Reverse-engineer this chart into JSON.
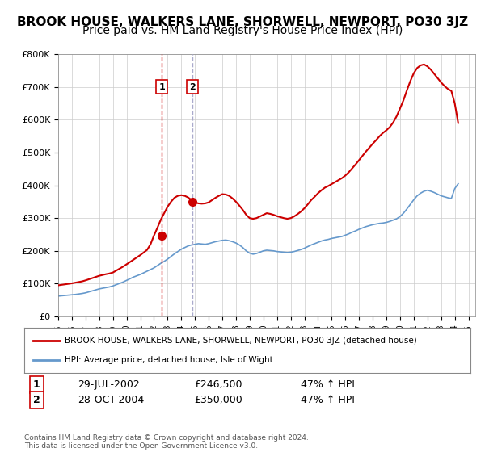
{
  "title": "BROOK HOUSE, WALKERS LANE, SHORWELL, NEWPORT, PO30 3JZ",
  "subtitle": "Price paid vs. HM Land Registry's House Price Index (HPI)",
  "title_fontsize": 11,
  "subtitle_fontsize": 10,
  "ylabel_ticks": [
    "£0",
    "£100K",
    "£200K",
    "£300K",
    "£400K",
    "£500K",
    "£600K",
    "£700K",
    "£800K"
  ],
  "ylim": [
    0,
    800000
  ],
  "xlim_start": 1995.0,
  "xlim_end": 2025.5,
  "sale1": {
    "date": "29-JUL-2002",
    "price": 246500,
    "label": "1",
    "x": 2002.57,
    "hpi_pct": "47% ↑ HPI"
  },
  "sale2": {
    "date": "28-OCT-2004",
    "price": 350000,
    "label": "2",
    "x": 2004.82,
    "hpi_pct": "47% ↑ HPI"
  },
  "legend_property": "BROOK HOUSE, WALKERS LANE, SHORWELL, NEWPORT, PO30 3JZ (detached house)",
  "legend_hpi": "HPI: Average price, detached house, Isle of Wight",
  "footer": "Contains HM Land Registry data © Crown copyright and database right 2024.\nThis data is licensed under the Open Government Licence v3.0.",
  "property_line_color": "#cc0000",
  "hpi_line_color": "#6699cc",
  "grid_color": "#cccccc",
  "background_color": "#ffffff",
  "sale_marker_color": "#cc0000",
  "sale_vline_color_1": "#cc0000",
  "sale_vline_color_2": "#aaaacc",
  "hpi_years": [
    1995,
    1995.25,
    1995.5,
    1995.75,
    1996,
    1996.25,
    1996.5,
    1996.75,
    1997,
    1997.25,
    1997.5,
    1997.75,
    1998,
    1998.25,
    1998.5,
    1998.75,
    1999,
    1999.25,
    1999.5,
    1999.75,
    2000,
    2000.25,
    2000.5,
    2000.75,
    2001,
    2001.25,
    2001.5,
    2001.75,
    2002,
    2002.25,
    2002.5,
    2002.75,
    2003,
    2003.25,
    2003.5,
    2003.75,
    2004,
    2004.25,
    2004.5,
    2004.75,
    2005,
    2005.25,
    2005.5,
    2005.75,
    2006,
    2006.25,
    2006.5,
    2006.75,
    2007,
    2007.25,
    2007.5,
    2007.75,
    2008,
    2008.25,
    2008.5,
    2008.75,
    2009,
    2009.25,
    2009.5,
    2009.75,
    2010,
    2010.25,
    2010.5,
    2010.75,
    2011,
    2011.25,
    2011.5,
    2011.75,
    2012,
    2012.25,
    2012.5,
    2012.75,
    2013,
    2013.25,
    2013.5,
    2013.75,
    2014,
    2014.25,
    2014.5,
    2014.75,
    2015,
    2015.25,
    2015.5,
    2015.75,
    2016,
    2016.25,
    2016.5,
    2016.75,
    2017,
    2017.25,
    2017.5,
    2017.75,
    2018,
    2018.25,
    2018.5,
    2018.75,
    2019,
    2019.25,
    2019.5,
    2019.75,
    2020,
    2020.25,
    2020.5,
    2020.75,
    2021,
    2021.25,
    2021.5,
    2021.75,
    2022,
    2022.25,
    2022.5,
    2022.75,
    2023,
    2023.25,
    2023.5,
    2023.75,
    2024,
    2024.25
  ],
  "hpi_values": [
    62000,
    63000,
    64000,
    65000,
    66000,
    67000,
    68500,
    70000,
    72000,
    75000,
    78000,
    81000,
    84000,
    86000,
    88000,
    90000,
    93000,
    97000,
    101000,
    105000,
    110000,
    115000,
    120000,
    124000,
    128000,
    133000,
    138000,
    143000,
    148000,
    155000,
    162000,
    168000,
    175000,
    183000,
    191000,
    198000,
    205000,
    210000,
    215000,
    218000,
    220000,
    222000,
    221000,
    220000,
    222000,
    225000,
    228000,
    230000,
    232000,
    233000,
    231000,
    228000,
    224000,
    218000,
    210000,
    200000,
    193000,
    190000,
    192000,
    196000,
    200000,
    202000,
    201000,
    200000,
    198000,
    197000,
    196000,
    195000,
    196000,
    198000,
    201000,
    204000,
    208000,
    213000,
    218000,
    222000,
    226000,
    230000,
    233000,
    235000,
    238000,
    240000,
    242000,
    244000,
    248000,
    252000,
    257000,
    261000,
    266000,
    270000,
    274000,
    277000,
    280000,
    282000,
    284000,
    285000,
    287000,
    290000,
    294000,
    298000,
    305000,
    315000,
    328000,
    342000,
    356000,
    368000,
    376000,
    382000,
    385000,
    382000,
    378000,
    373000,
    368000,
    365000,
    362000,
    360000,
    390000,
    405000
  ],
  "property_years": [
    1995,
    1995.25,
    1995.5,
    1995.75,
    1996,
    1996.25,
    1996.5,
    1996.75,
    1997,
    1997.25,
    1997.5,
    1997.75,
    1998,
    1998.25,
    1998.5,
    1998.75,
    1999,
    1999.25,
    1999.5,
    1999.75,
    2000,
    2000.25,
    2000.5,
    2000.75,
    2001,
    2001.25,
    2001.5,
    2001.75,
    2002,
    2002.25,
    2002.5,
    2002.75,
    2003,
    2003.25,
    2003.5,
    2003.75,
    2004,
    2004.25,
    2004.5,
    2004.75,
    2005,
    2005.25,
    2005.5,
    2005.75,
    2006,
    2006.25,
    2006.5,
    2006.75,
    2007,
    2007.25,
    2007.5,
    2007.75,
    2008,
    2008.25,
    2008.5,
    2008.75,
    2009,
    2009.25,
    2009.5,
    2009.75,
    2010,
    2010.25,
    2010.5,
    2010.75,
    2011,
    2011.25,
    2011.5,
    2011.75,
    2012,
    2012.25,
    2012.5,
    2012.75,
    2013,
    2013.25,
    2013.5,
    2013.75,
    2014,
    2014.25,
    2014.5,
    2014.75,
    2015,
    2015.25,
    2015.5,
    2015.75,
    2016,
    2016.25,
    2016.5,
    2016.75,
    2017,
    2017.25,
    2017.5,
    2017.75,
    2018,
    2018.25,
    2018.5,
    2018.75,
    2019,
    2019.25,
    2019.5,
    2019.75,
    2020,
    2020.25,
    2020.5,
    2020.75,
    2021,
    2021.25,
    2021.5,
    2021.75,
    2022,
    2022.25,
    2022.5,
    2022.75,
    2023,
    2023.25,
    2023.5,
    2023.75,
    2024,
    2024.25
  ],
  "property_values": [
    95000,
    96500,
    98000,
    99500,
    101000,
    103000,
    105000,
    107000,
    110000,
    113500,
    117000,
    120500,
    124000,
    126500,
    129000,
    131000,
    134000,
    140000,
    146000,
    152000,
    159000,
    166000,
    173000,
    180000,
    187000,
    195000,
    203000,
    220000,
    246500,
    270000,
    295000,
    315000,
    335000,
    350000,
    362000,
    368000,
    370000,
    368000,
    363000,
    355000,
    348000,
    345000,
    344000,
    345000,
    348000,
    355000,
    362000,
    368000,
    373000,
    372000,
    368000,
    360000,
    350000,
    338000,
    325000,
    310000,
    300000,
    298000,
    300000,
    305000,
    310000,
    315000,
    313000,
    310000,
    306000,
    303000,
    300000,
    298000,
    300000,
    305000,
    312000,
    320000,
    330000,
    342000,
    355000,
    365000,
    376000,
    385000,
    393000,
    398000,
    404000,
    410000,
    416000,
    422000,
    430000,
    440000,
    452000,
    464000,
    477000,
    490000,
    503000,
    515000,
    527000,
    538000,
    550000,
    560000,
    568000,
    578000,
    592000,
    611000,
    635000,
    660000,
    690000,
    718000,
    742000,
    758000,
    766000,
    769000,
    763000,
    753000,
    740000,
    727000,
    714000,
    703000,
    694000,
    688000,
    650000,
    590000
  ]
}
